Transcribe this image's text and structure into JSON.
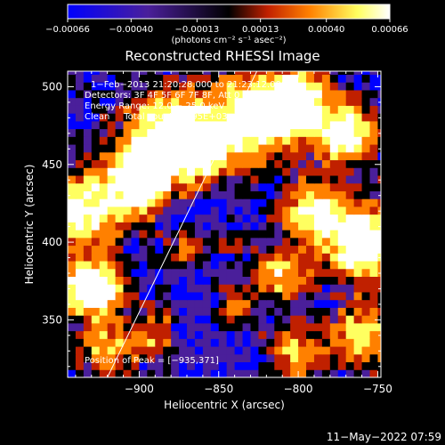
{
  "chart_data": {
    "type": "heatmap",
    "title": "Reconstructed RHESSI Image",
    "xlabel": "Heliocentric X (arcsec)",
    "ylabel": "Heliocentric Y (arcsec)",
    "xlim": [
      -945,
      -748
    ],
    "ylim": [
      313,
      510
    ],
    "x_ticks": [
      -900,
      -850,
      -800,
      -750
    ],
    "x_tick_labels": [
      "−900",
      "−850",
      "−800",
      "−750"
    ],
    "y_ticks": [
      350,
      400,
      450,
      500
    ],
    "y_tick_labels": [
      "350",
      "400",
      "450",
      "500"
    ],
    "colorbar": {
      "min": -0.00066,
      "max": 0.00066,
      "ticks": [
        -0.00066,
        -0.0004,
        -0.00013,
        0.00013,
        0.0004,
        0.00066
      ],
      "tick_labels": [
        "−0.00066",
        "−0.00040",
        "−0.00013",
        "0.00013",
        "0.00040",
        "0.00066"
      ],
      "unit_label": "(photons cm⁻² s⁻¹ asec⁻²)",
      "colors": [
        "#0000ff",
        "#4a1f9a",
        "#000000",
        "#c02000",
        "#ff8000",
        "#ffff60",
        "#ffffff"
      ]
    },
    "info_lines": [
      "1−Feb−2013 21:20:28.000 to 21:23:12.000",
      "Detectors: 3F 4F 5F 6F 7F 8F, Att 0",
      "Energy Range: 12.0 − 25.0 keV",
      "Clean     Total counts: 3.95E+03"
    ],
    "peak_label": "Position of Peak = [−935,371]",
    "limb_line": {
      "points": [
        [
          -920,
          313
        ],
        [
          -826,
          510
        ]
      ]
    },
    "grid": false
  },
  "footer": {
    "timestamp": "11−May−2022 07:59"
  }
}
